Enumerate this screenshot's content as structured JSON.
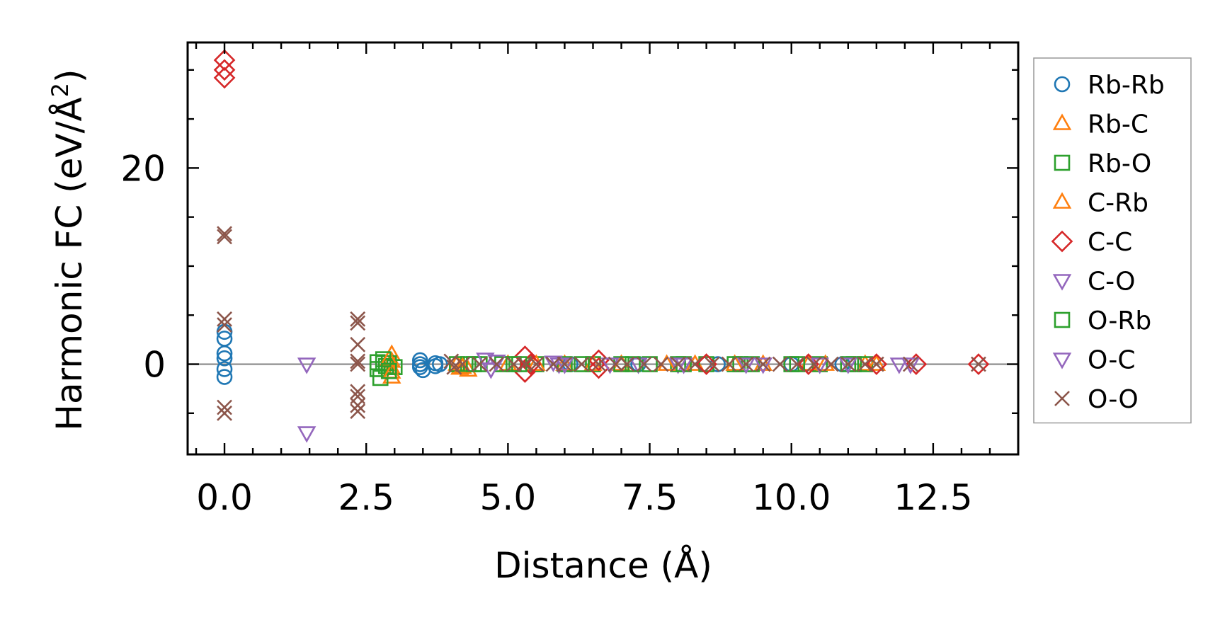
{
  "chart_data": {
    "type": "scatter",
    "xlabel": "Distance (Å)",
    "ylabel": "Harmonic FC (eV/Å²)",
    "ylabel_parts": {
      "main": "Harmonic FC (eV/Å",
      "sup": "2",
      "close": ")"
    },
    "xlim": [
      -0.65,
      14.0
    ],
    "ylim": [
      -9.2,
      32.8
    ],
    "xticks": [
      0.0,
      2.5,
      5.0,
      7.5,
      10.0,
      12.5
    ],
    "xtick_labels": [
      "0.0",
      "2.5",
      "5.0",
      "7.5",
      "10.0",
      "12.5"
    ],
    "yticks": [
      0,
      20
    ],
    "ytick_labels": [
      "0",
      "20"
    ],
    "x_minor_step": 0.5,
    "y_minor_step": 5,
    "zero_line": true,
    "grid": false,
    "legend_position": "outside-right",
    "series": [
      {
        "name": "Rb-Rb",
        "marker": "circle",
        "color": "#1f77b4",
        "points": [
          [
            0.0,
            3.3
          ],
          [
            0.0,
            2.6
          ],
          [
            0.0,
            1.1
          ],
          [
            0.0,
            0.6
          ],
          [
            0.0,
            -0.5
          ],
          [
            0.0,
            -1.3
          ],
          [
            3.45,
            0.4
          ],
          [
            3.45,
            0.0
          ],
          [
            3.45,
            -0.3
          ],
          [
            3.5,
            -0.6
          ],
          [
            3.72,
            0.1
          ],
          [
            3.72,
            -0.2
          ],
          [
            3.8,
            0.0
          ],
          [
            6.1,
            0.0
          ],
          [
            7.3,
            0.0
          ],
          [
            8.7,
            0.0
          ],
          [
            10.0,
            0.0
          ],
          [
            10.9,
            0.0
          ]
        ]
      },
      {
        "name": "Rb-C",
        "marker": "triangle-up",
        "color": "#ff7f0e",
        "points": [
          [
            2.95,
            1.0
          ],
          [
            2.95,
            0.3
          ],
          [
            2.95,
            -0.4
          ],
          [
            2.95,
            -1.3
          ],
          [
            4.1,
            0.0
          ],
          [
            4.15,
            -0.4
          ],
          [
            4.3,
            -0.6
          ],
          [
            5.0,
            0.0
          ],
          [
            6.0,
            0.0
          ],
          [
            7.0,
            0.0
          ],
          [
            8.3,
            0.0
          ],
          [
            9.5,
            0.0
          ],
          [
            10.3,
            0.0
          ],
          [
            11.3,
            0.0
          ]
        ]
      },
      {
        "name": "Rb-O",
        "marker": "square",
        "color": "#2ca02c",
        "points": [
          [
            2.7,
            0.2
          ],
          [
            2.7,
            -0.5
          ],
          [
            2.75,
            -1.4
          ],
          [
            2.8,
            0.1
          ],
          [
            2.85,
            -0.2
          ],
          [
            2.9,
            0.1
          ],
          [
            3.0,
            -0.3
          ],
          [
            4.1,
            0.0
          ],
          [
            4.3,
            0.0
          ],
          [
            4.5,
            0.0
          ],
          [
            4.9,
            0.0
          ],
          [
            5.1,
            0.0
          ],
          [
            5.5,
            0.0
          ],
          [
            6.0,
            0.0
          ],
          [
            6.5,
            0.0
          ],
          [
            7.0,
            0.0
          ],
          [
            7.5,
            0.0
          ],
          [
            8.0,
            0.0
          ],
          [
            8.5,
            0.0
          ],
          [
            9.0,
            0.0
          ],
          [
            9.3,
            0.0
          ],
          [
            10.0,
            0.0
          ],
          [
            10.5,
            0.0
          ],
          [
            11.0,
            0.0
          ],
          [
            11.3,
            0.0
          ]
        ]
      },
      {
        "name": "C-Rb",
        "marker": "triangle-up",
        "color": "#ff7f0e",
        "points": [
          [
            2.9,
            0.5
          ],
          [
            2.95,
            -0.8
          ],
          [
            4.2,
            -0.3
          ],
          [
            5.5,
            0.0
          ],
          [
            6.5,
            0.0
          ],
          [
            7.8,
            0.0
          ],
          [
            9.0,
            0.0
          ],
          [
            10.6,
            0.0
          ],
          [
            11.5,
            0.0
          ]
        ]
      },
      {
        "name": "C-C",
        "marker": "diamond",
        "color": "#d62728",
        "points": [
          [
            0.0,
            31.0
          ],
          [
            0.0,
            30.0
          ],
          [
            0.0,
            29.2
          ],
          [
            5.3,
            0.8
          ],
          [
            5.3,
            -0.8
          ],
          [
            5.4,
            0.0
          ],
          [
            6.6,
            0.4
          ],
          [
            6.6,
            -0.4
          ],
          [
            8.5,
            0.0
          ],
          [
            10.3,
            0.0
          ],
          [
            11.5,
            0.0
          ],
          [
            12.2,
            0.0
          ],
          [
            13.3,
            0.0
          ]
        ]
      },
      {
        "name": "C-O",
        "marker": "triangle-down",
        "color": "#9467bd",
        "points": [
          [
            1.45,
            0.0
          ],
          [
            1.45,
            -7.0
          ],
          [
            4.8,
            0.3
          ],
          [
            4.7,
            -0.5
          ],
          [
            5.8,
            0.2
          ],
          [
            6.0,
            0.0
          ],
          [
            7.3,
            0.0
          ],
          [
            8.0,
            0.0
          ],
          [
            9.5,
            0.0
          ],
          [
            10.5,
            0.0
          ],
          [
            11.9,
            0.0
          ]
        ]
      },
      {
        "name": "O-Rb",
        "marker": "square",
        "color": "#2ca02c",
        "points": [
          [
            2.8,
            0.5
          ],
          [
            2.9,
            -0.7
          ],
          [
            4.4,
            0.0
          ],
          [
            5.2,
            0.0
          ],
          [
            6.3,
            0.0
          ],
          [
            7.2,
            0.0
          ],
          [
            8.1,
            0.0
          ],
          [
            9.1,
            0.0
          ],
          [
            10.1,
            0.0
          ],
          [
            11.1,
            0.0
          ]
        ]
      },
      {
        "name": "O-C",
        "marker": "triangle-down",
        "color": "#9467bd",
        "points": [
          [
            4.6,
            0.5
          ],
          [
            5.9,
            0.0
          ],
          [
            6.8,
            0.0
          ],
          [
            8.1,
            0.0
          ],
          [
            9.2,
            0.0
          ],
          [
            11.0,
            0.0
          ],
          [
            12.1,
            0.0
          ]
        ]
      },
      {
        "name": "O-O",
        "marker": "x",
        "color": "#8c564b",
        "points": [
          [
            0.0,
            13.3
          ],
          [
            0.0,
            13.0
          ],
          [
            0.0,
            4.6
          ],
          [
            0.0,
            4.0
          ],
          [
            0.0,
            -4.4
          ],
          [
            0.0,
            -5.0
          ],
          [
            2.35,
            4.6
          ],
          [
            2.35,
            4.2
          ],
          [
            2.35,
            2.0
          ],
          [
            2.35,
            0.3
          ],
          [
            2.35,
            0.0
          ],
          [
            2.35,
            -2.8
          ],
          [
            2.35,
            -3.3
          ],
          [
            2.35,
            -4.2
          ],
          [
            2.35,
            -4.8
          ],
          [
            4.0,
            0.3
          ],
          [
            4.05,
            -0.3
          ],
          [
            4.2,
            0.0
          ],
          [
            4.5,
            0.0
          ],
          [
            4.8,
            0.0
          ],
          [
            5.1,
            0.0
          ],
          [
            5.3,
            0.0
          ],
          [
            5.5,
            0.0
          ],
          [
            5.8,
            0.0
          ],
          [
            6.0,
            0.0
          ],
          [
            6.3,
            0.0
          ],
          [
            6.6,
            0.0
          ],
          [
            6.9,
            0.0
          ],
          [
            7.1,
            0.0
          ],
          [
            7.4,
            0.0
          ],
          [
            7.7,
            0.0
          ],
          [
            8.0,
            0.0
          ],
          [
            8.3,
            0.0
          ],
          [
            8.6,
            0.0
          ],
          [
            8.9,
            0.0
          ],
          [
            9.2,
            0.0
          ],
          [
            9.5,
            0.0
          ],
          [
            9.8,
            0.0
          ],
          [
            10.1,
            0.0
          ],
          [
            10.4,
            0.0
          ],
          [
            10.7,
            0.0
          ],
          [
            11.0,
            0.0
          ],
          [
            11.3,
            0.0
          ],
          [
            11.5,
            0.0
          ],
          [
            12.1,
            0.0
          ],
          [
            13.3,
            0.0
          ]
        ]
      }
    ]
  }
}
